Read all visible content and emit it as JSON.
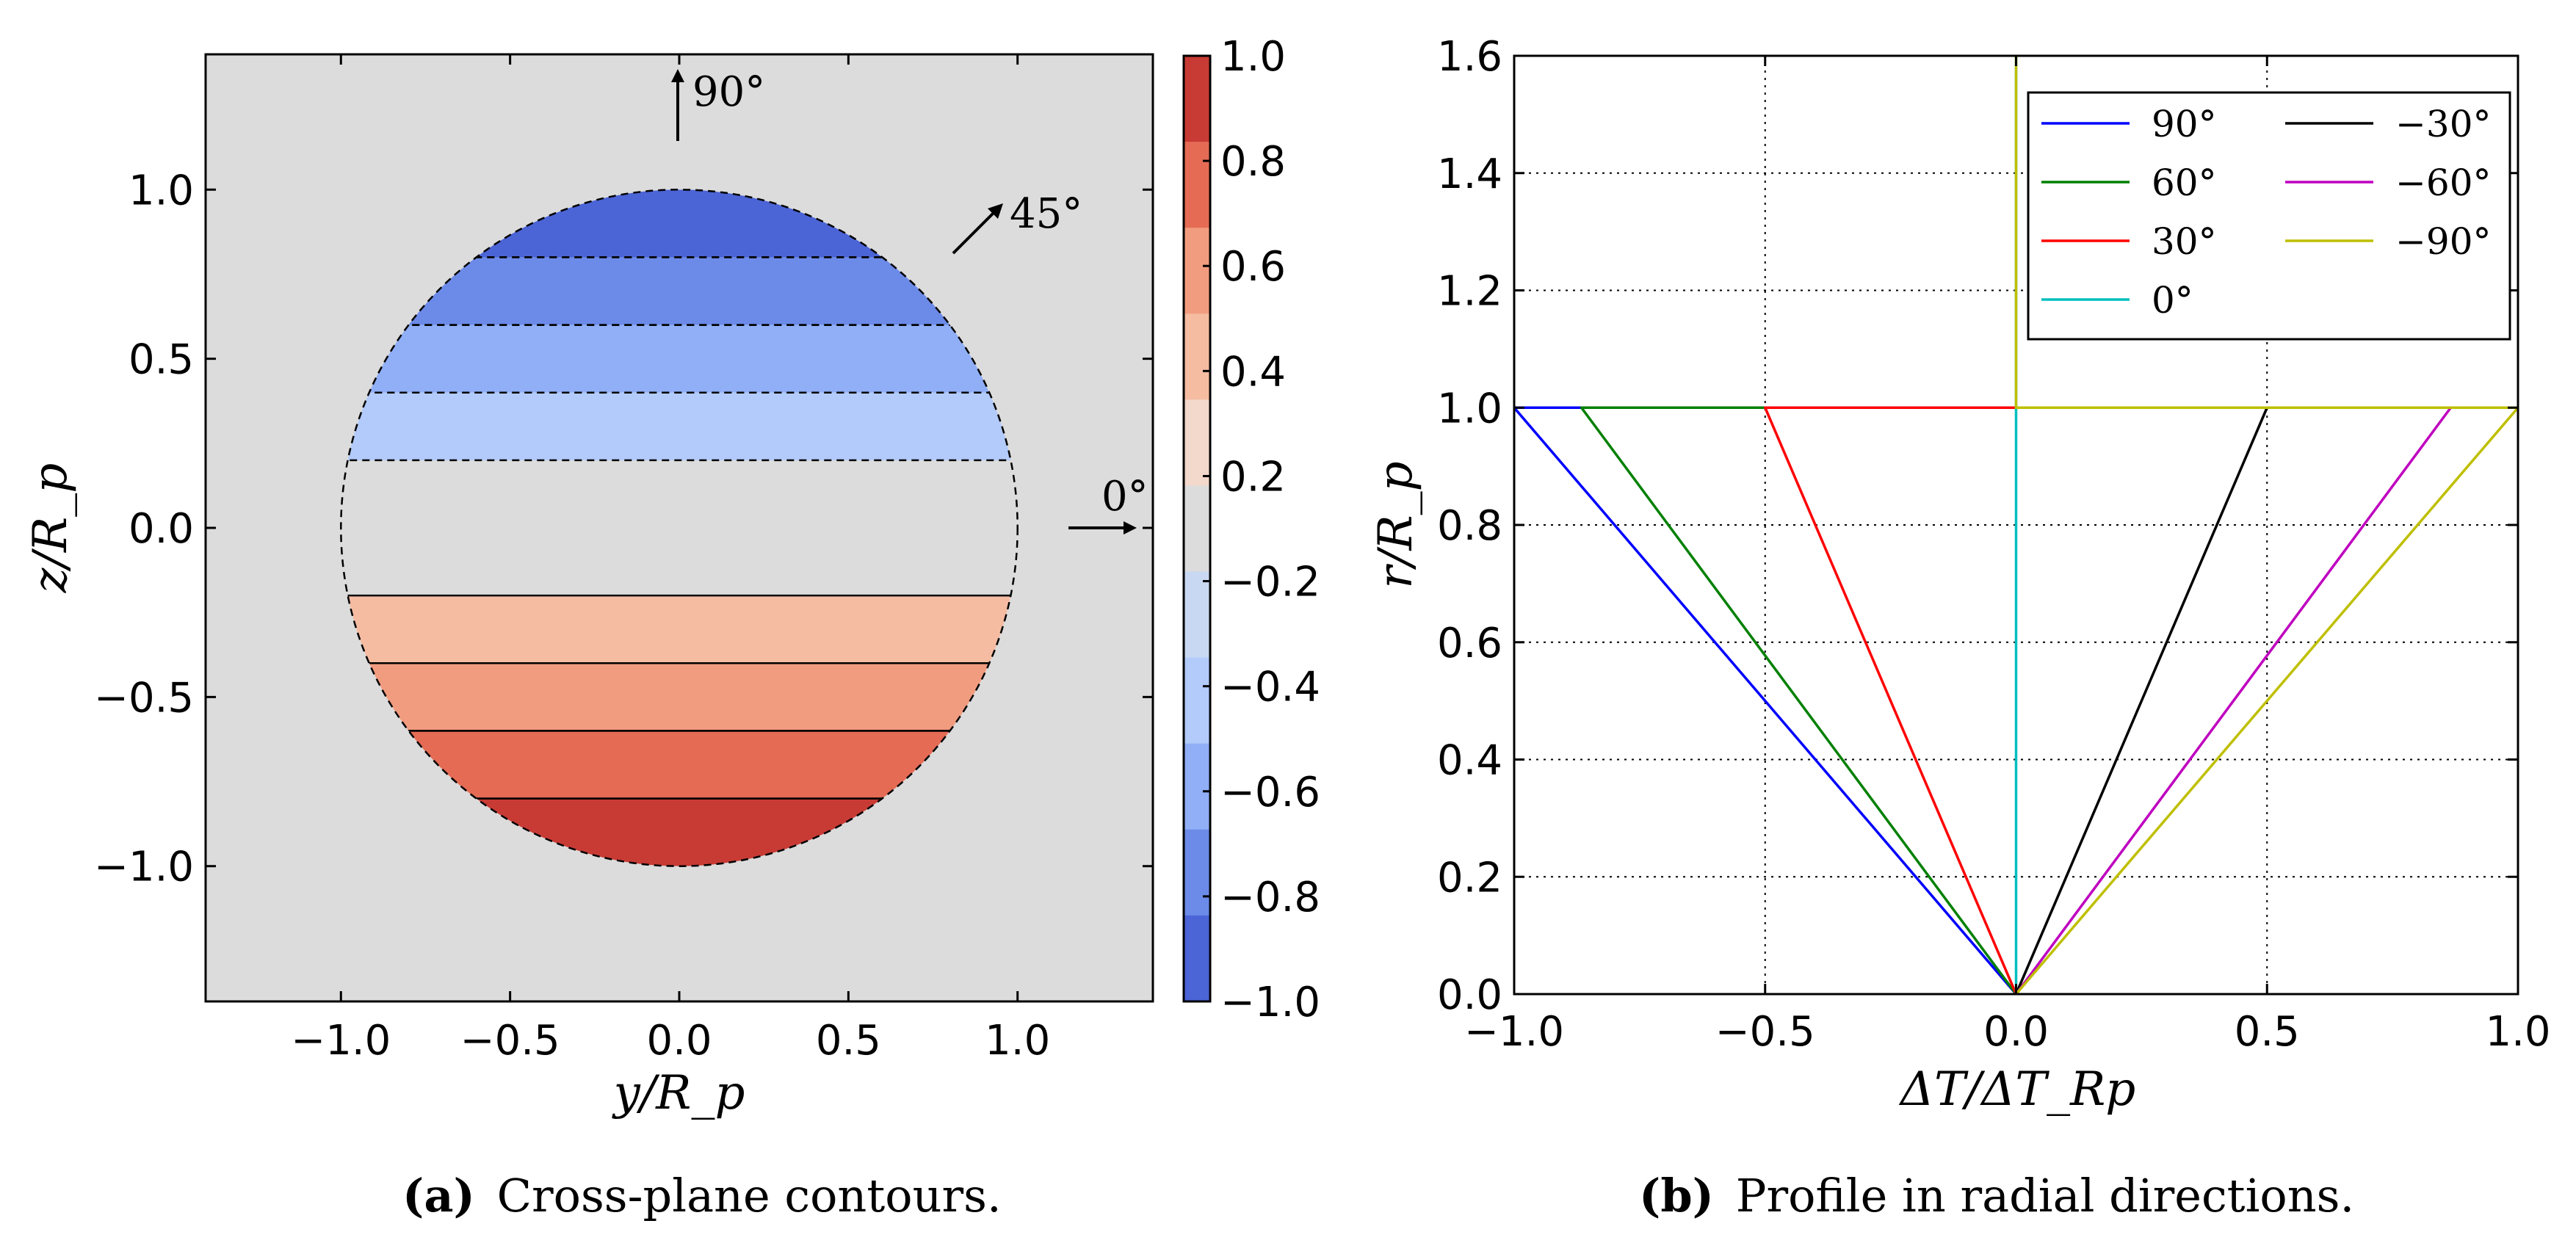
{
  "chart_data": [
    {
      "panel": "a",
      "type": "heatmap",
      "caption_label": "(a)",
      "caption_text": "Cross-plane contours.",
      "xlabel": "y/R_p",
      "ylabel": "z/R_p",
      "xlim": [
        -1.4,
        1.4
      ],
      "ylim": [
        -1.4,
        1.4
      ],
      "xticks": [
        -1.0,
        -0.5,
        0.0,
        0.5,
        1.0
      ],
      "xtick_labels": [
        "−1.0",
        "−0.5",
        "0.0",
        "0.5",
        "1.0"
      ],
      "yticks": [
        1.0,
        0.5,
        0.0,
        -0.5,
        -1.0
      ],
      "ytick_labels": [
        "1.0",
        "0.5",
        "0.0",
        "−0.5",
        "−1.0"
      ],
      "circle_radius": 1.0,
      "bands": [
        {
          "z_from": 0.8,
          "z_to": 1.0,
          "value": -1.0,
          "color": "#4b64d6"
        },
        {
          "z_from": 0.6,
          "z_to": 0.8,
          "value": -0.8,
          "color": "#6c8be9"
        },
        {
          "z_from": 0.4,
          "z_to": 0.6,
          "value": -0.6,
          "color": "#90aff7"
        },
        {
          "z_from": 0.2,
          "z_to": 0.4,
          "value": -0.4,
          "color": "#b2cbfb"
        },
        {
          "z_from": -0.4,
          "z_to": -0.2,
          "value": 0.4,
          "color": "#f5bca2"
        },
        {
          "z_from": -0.6,
          "z_to": -0.4,
          "value": 0.6,
          "color": "#f29c7f"
        },
        {
          "z_from": -0.8,
          "z_to": -0.6,
          "value": 0.8,
          "color": "#e56b55"
        },
        {
          "z_from": -1.0,
          "z_to": -0.8,
          "value": 1.0,
          "color": "#c83b35"
        }
      ],
      "background_color": "#dcdcdc",
      "annotations": [
        {
          "text": "90°",
          "angle": 90
        },
        {
          "text": "45°",
          "angle": 45
        },
        {
          "text": "0°",
          "angle": 0
        }
      ],
      "colorbar": {
        "levels": [
          -1.0,
          -0.8,
          -0.6,
          -0.4,
          -0.2,
          0.2,
          0.4,
          0.6,
          0.8,
          1.0
        ],
        "labels": [
          "1.0",
          "0.8",
          "0.6",
          "0.4",
          "0.2",
          "−0.2",
          "−0.4",
          "−0.6",
          "−0.8",
          "−1.0"
        ],
        "colors_top_to_bottom": [
          "#c83b35",
          "#e56b55",
          "#f29c7f",
          "#f5bca2",
          "#f3d9cb",
          "#dcdcdc",
          "#c9d8f2",
          "#b2cbfb",
          "#90aff7",
          "#6c8be9",
          "#4b64d6"
        ]
      }
    },
    {
      "panel": "b",
      "type": "line",
      "caption_label": "(b)",
      "caption_text": "Profile in radial directions.",
      "xlabel": "ΔT/ΔT_Rp",
      "ylabel": "r/R_p",
      "xlim": [
        -1.0,
        1.0
      ],
      "ylim": [
        0.0,
        1.6
      ],
      "xticks": [
        -1.0,
        -0.5,
        0.0,
        0.5,
        1.0
      ],
      "xtick_labels": [
        "−1.0",
        "−0.5",
        "0.0",
        "0.5",
        "1.0"
      ],
      "yticks": [
        0.0,
        0.2,
        0.4,
        0.6,
        0.8,
        1.0,
        1.2,
        1.4,
        1.6
      ],
      "ytick_labels": [
        "0.0",
        "0.2",
        "0.4",
        "0.6",
        "0.8",
        "1.0",
        "1.2",
        "1.4",
        "1.6"
      ],
      "grid": true,
      "legend": "top-right",
      "series": [
        {
          "name": "90°",
          "color": "#0000ff",
          "x": [
            0.0,
            -1.0,
            1.0
          ],
          "y": [
            0.0,
            1.0,
            1.0
          ]
        },
        {
          "name": "60°",
          "color": "#008000",
          "x": [
            0.0,
            -0.866,
            1.0
          ],
          "y": [
            0.0,
            1.0,
            1.0
          ]
        },
        {
          "name": "30°",
          "color": "#ff0000",
          "x": [
            0.0,
            -0.5,
            1.0
          ],
          "y": [
            0.0,
            1.0,
            1.0
          ]
        },
        {
          "name": "0°",
          "color": "#00bfbf",
          "x": [
            0.0,
            0.0,
            0.0
          ],
          "y": [
            0.0,
            1.0,
            1.6
          ]
        },
        {
          "name": "−30°",
          "color": "#000000",
          "x": [
            0.0,
            0.5,
            1.0
          ],
          "y": [
            0.0,
            1.0,
            1.0
          ]
        },
        {
          "name": "−60°",
          "color": "#bf00bf",
          "x": [
            0.0,
            0.866,
            1.0
          ],
          "y": [
            0.0,
            1.0,
            1.0
          ]
        },
        {
          "name": "−90°",
          "color": "#bfbf00",
          "x": [
            0.0,
            1.0,
            0.0,
            0.0
          ],
          "y": [
            0.0,
            1.0,
            1.0,
            1.6
          ]
        }
      ]
    }
  ]
}
